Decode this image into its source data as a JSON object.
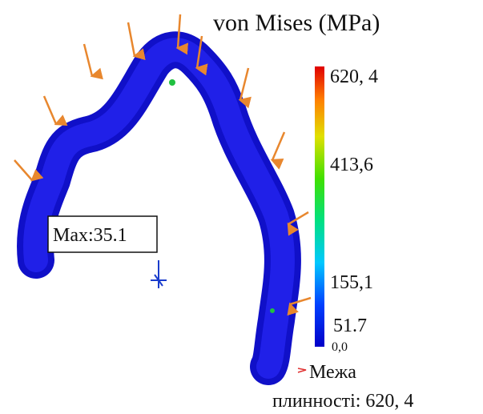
{
  "legend": {
    "title": "von Mises (MPa)",
    "labels": [
      "620, 4",
      "413,6",
      "155,1",
      "51.7",
      "0,0"
    ]
  },
  "probe": {
    "label": "Max:35.1"
  },
  "yield": {
    "line1": "Межа",
    "line2": "плинності: 620, 4"
  }
}
